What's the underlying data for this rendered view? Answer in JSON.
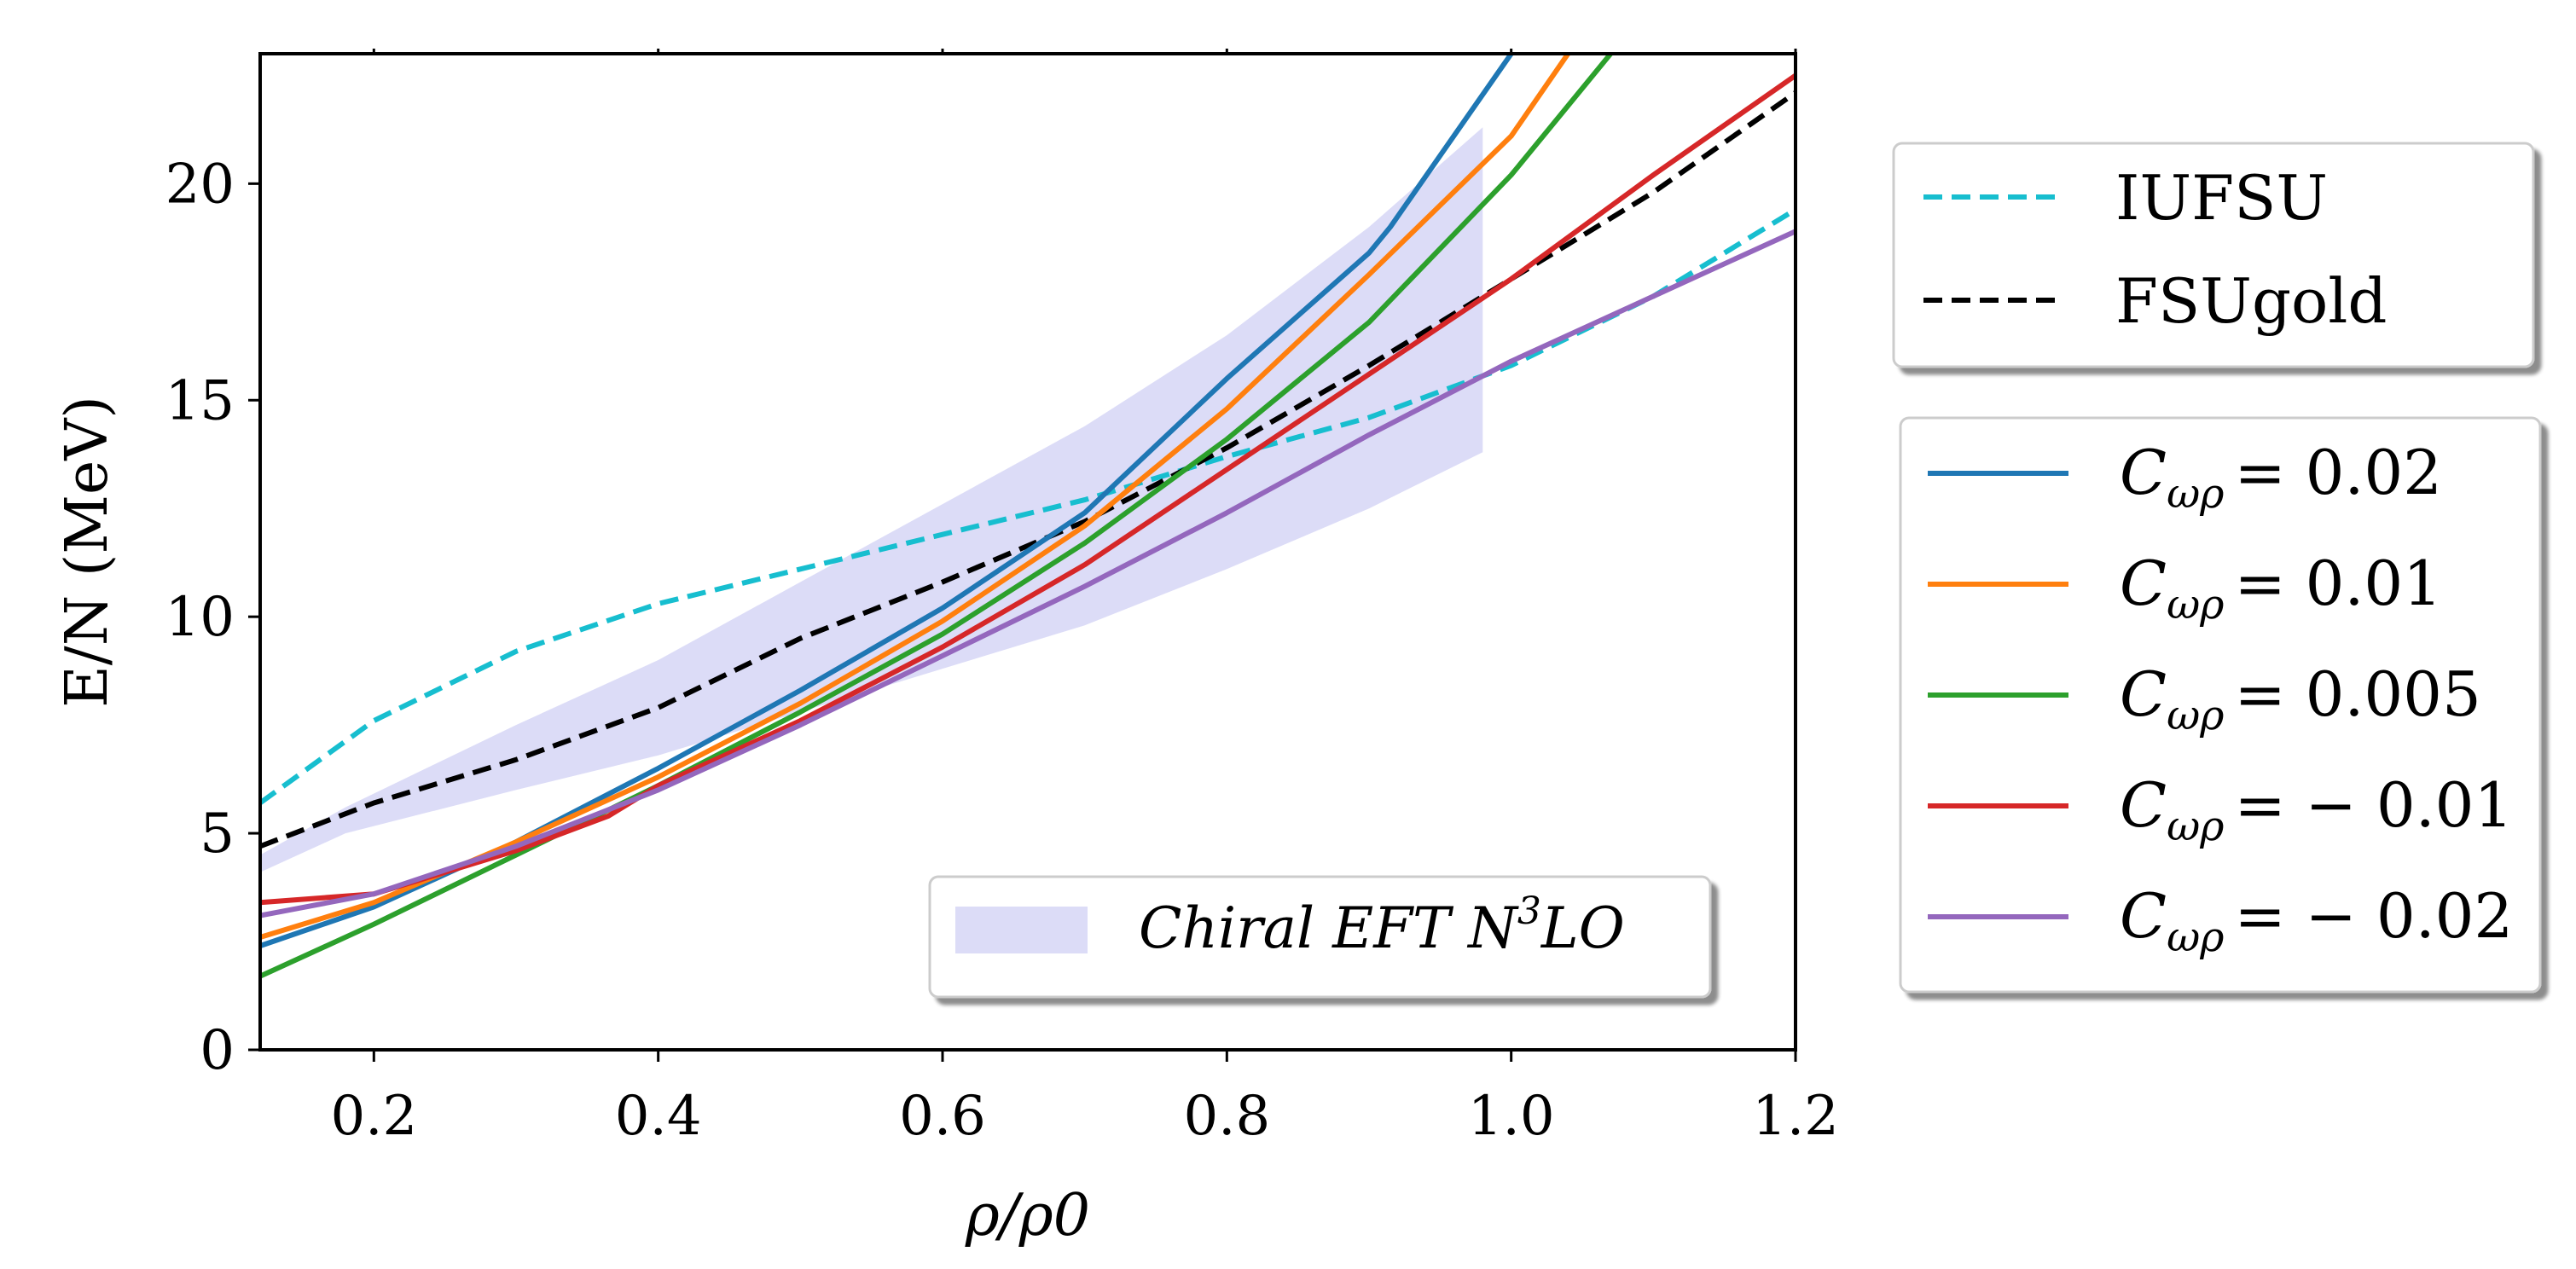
{
  "chart_data": {
    "type": "line",
    "title": "",
    "xlabel": "ρ/ρ0",
    "ylabel": "E/N (MeV)",
    "xlim": [
      0.12,
      1.2
    ],
    "ylim": [
      0,
      23
    ],
    "xticks": [
      "0.2",
      "0.4",
      "0.6",
      "0.8",
      "1.0",
      "1.2"
    ],
    "xtick_values": [
      0.2,
      0.4,
      0.6,
      0.8,
      1.0,
      1.2
    ],
    "yticks": [
      "0",
      "5",
      "10",
      "15",
      "20"
    ],
    "ytick_values": [
      0,
      5,
      10,
      15,
      20
    ],
    "grid": false,
    "band": {
      "label": "Chiral EFT N3LO",
      "label_main": "Chiral EFT N",
      "label_sup": "3",
      "label_end": "LO",
      "color": "#c4c4f2",
      "x": [
        0.12,
        0.18,
        0.3,
        0.4,
        0.5,
        0.6,
        0.7,
        0.8,
        0.9,
        0.98
      ],
      "lower": [
        4.1,
        5.0,
        6.0,
        6.8,
        7.8,
        8.8,
        9.8,
        11.1,
        12.5,
        13.8
      ],
      "upper": [
        4.5,
        5.6,
        7.5,
        9.0,
        10.8,
        12.6,
        14.4,
        16.5,
        19.0,
        21.3
      ]
    },
    "legend_models": {
      "placement": "upper-right-outside",
      "entries": [
        {
          "name": "IUFSU",
          "color": "#17becf",
          "style": "dashed"
        },
        {
          "name": "FSUgold",
          "color": "#000000",
          "style": "dashed"
        }
      ]
    },
    "legend_couplings": {
      "placement": "right-outside",
      "symbol": "C",
      "subscript": "ωρ",
      "entries": [
        {
          "name": "C_ωρ = 0.02",
          "value": "= 0.02",
          "color": "#1f77b4"
        },
        {
          "name": "C_ωρ = 0.01",
          "value": "= 0.01",
          "color": "#ff7f0e"
        },
        {
          "name": "C_ωρ = 0.005",
          "value": "= 0.005",
          "color": "#2ca02c"
        },
        {
          "name": "C_ωρ = −0.01",
          "value": "= − 0.01",
          "color": "#d62728"
        },
        {
          "name": "C_ωρ = −0.02",
          "value": "= − 0.02",
          "color": "#9467bd"
        }
      ]
    },
    "series": [
      {
        "name": "IUFSU",
        "color": "#17becf",
        "style": "dashed",
        "x": [
          0.12,
          0.2,
          0.3,
          0.4,
          0.5,
          0.6,
          0.7,
          0.8,
          0.9,
          1.0,
          1.1,
          1.2
        ],
        "y": [
          5.7,
          7.6,
          9.2,
          10.3,
          11.1,
          11.9,
          12.7,
          13.7,
          14.6,
          15.8,
          17.4,
          19.4
        ]
      },
      {
        "name": "FSUgold",
        "color": "#000000",
        "style": "dashed",
        "x": [
          0.12,
          0.2,
          0.3,
          0.4,
          0.5,
          0.6,
          0.7,
          0.8,
          0.9,
          1.0,
          1.1,
          1.2
        ],
        "y": [
          4.7,
          5.7,
          6.7,
          7.9,
          9.5,
          10.8,
          12.2,
          13.9,
          15.8,
          17.8,
          19.8,
          22.1
        ]
      },
      {
        "name": "C_ωρ = 0.02",
        "color": "#1f77b4",
        "style": "solid",
        "x": [
          0.12,
          0.2,
          0.3,
          0.4,
          0.5,
          0.6,
          0.7,
          0.8,
          0.9,
          0.915,
          1.0
        ],
        "y": [
          2.4,
          3.3,
          4.8,
          6.5,
          8.3,
          10.2,
          12.4,
          15.5,
          18.4,
          19.0,
          23.0
        ]
      },
      {
        "name": "C_ωρ = 0.01",
        "color": "#ff7f0e",
        "style": "solid",
        "x": [
          0.12,
          0.2,
          0.3,
          0.4,
          0.5,
          0.6,
          0.7,
          0.8,
          0.9,
          1.0,
          1.04
        ],
        "y": [
          2.6,
          3.4,
          4.8,
          6.3,
          8.0,
          9.9,
          12.1,
          14.8,
          17.9,
          21.1,
          23.0
        ]
      },
      {
        "name": "C_ωρ = 0.005",
        "color": "#2ca02c",
        "style": "solid",
        "x": [
          0.12,
          0.2,
          0.3,
          0.4,
          0.5,
          0.6,
          0.7,
          0.8,
          0.9,
          1.0,
          1.07
        ],
        "y": [
          1.7,
          2.9,
          4.5,
          6.1,
          7.8,
          9.6,
          11.7,
          14.1,
          16.8,
          20.2,
          23.0
        ]
      },
      {
        "name": "C_ωρ = −0.01",
        "color": "#d62728",
        "style": "solid",
        "x": [
          0.12,
          0.2,
          0.3,
          0.365,
          0.4,
          0.5,
          0.6,
          0.7,
          0.8,
          0.9,
          1.0,
          1.1,
          1.2
        ],
        "y": [
          3.4,
          3.6,
          4.6,
          5.4,
          6.1,
          7.6,
          9.3,
          11.2,
          13.4,
          15.6,
          17.8,
          20.2,
          22.5
        ]
      },
      {
        "name": "C_ωρ = −0.02",
        "color": "#9467bd",
        "style": "solid",
        "x": [
          0.12,
          0.2,
          0.3,
          0.4,
          0.5,
          0.6,
          0.7,
          0.8,
          0.9,
          1.0,
          1.1,
          1.2
        ],
        "y": [
          3.1,
          3.6,
          4.7,
          6.0,
          7.5,
          9.1,
          10.7,
          12.4,
          14.2,
          15.9,
          17.4,
          18.9
        ]
      }
    ]
  }
}
